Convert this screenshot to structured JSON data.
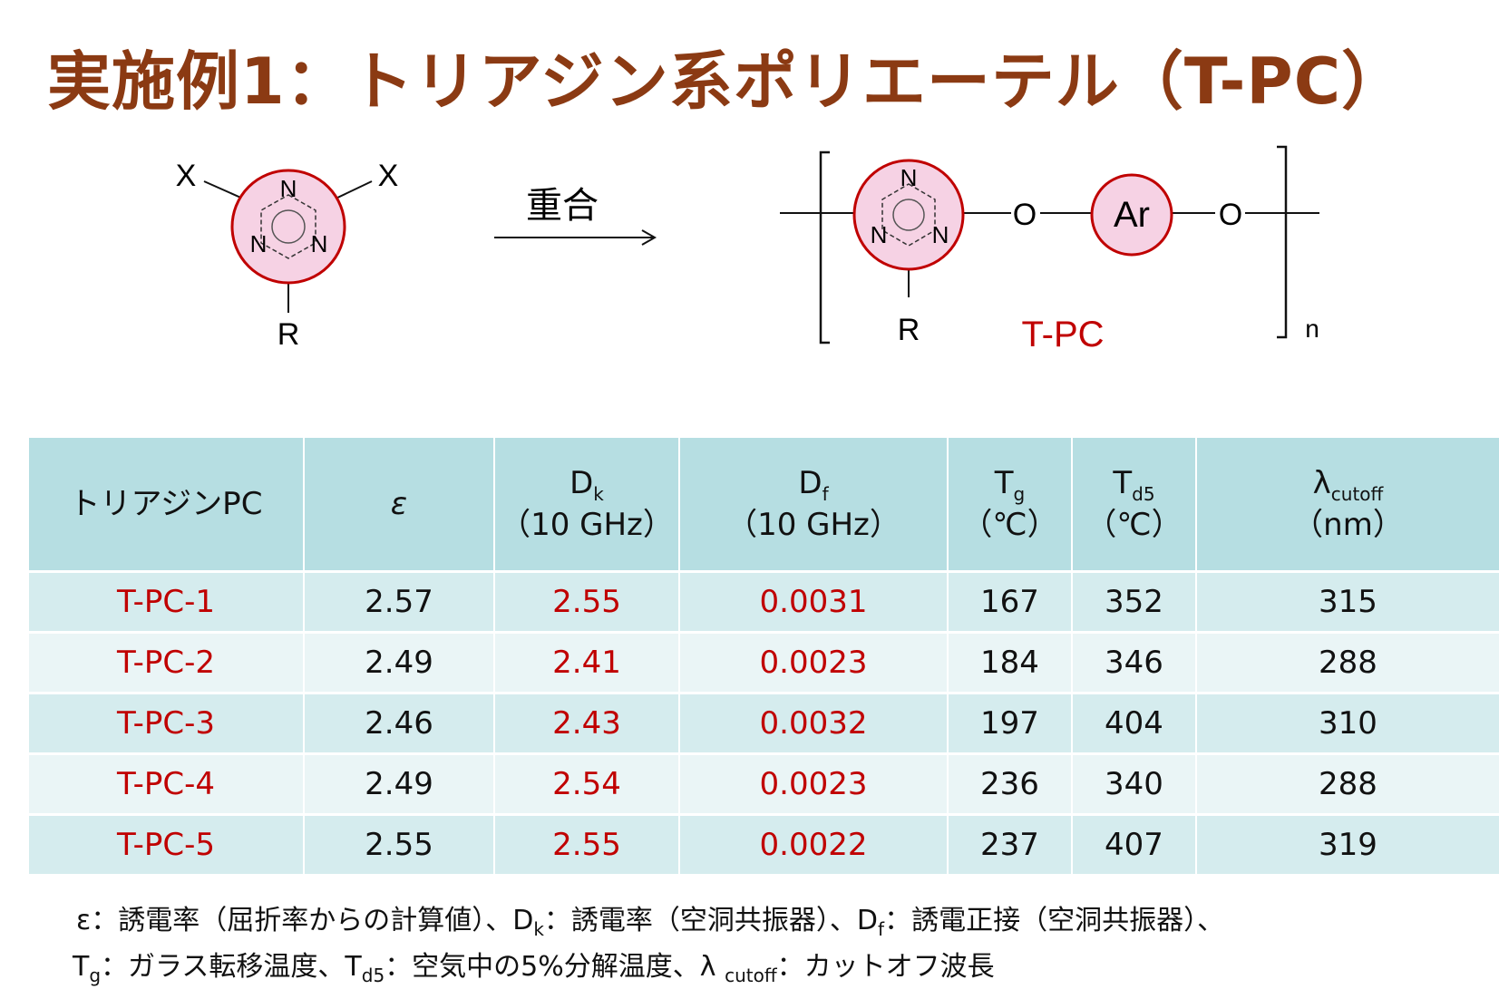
{
  "title": "実施例1：トリアジン系ポリエーテル（T-PC）",
  "scheme": {
    "monomer_sub_x_left": "X",
    "monomer_sub_x_right": "X",
    "monomer_n_top": "N",
    "monomer_n_left": "N",
    "monomer_n_right": "N",
    "monomer_r": "R",
    "reaction_label": "重合",
    "polymer_n_top": "N",
    "polymer_n_left": "N",
    "polymer_n_right": "N",
    "polymer_r": "R",
    "oxygen_1": "O",
    "aryl": "Ar",
    "oxygen_2": "O",
    "repeat_n": "n",
    "polymer_name": "T-PC",
    "colors": {
      "ring_fill": "#F6D2E4",
      "ring_stroke": "#C00000",
      "accent": "#C00000"
    }
  },
  "table": {
    "headers": {
      "c1": "トリアジンPC",
      "c2": "ε",
      "c3_main": "D",
      "c3_sub": "k",
      "c3_line2": "（10 GHz）",
      "c4_main": "D",
      "c4_sub": "f",
      "c4_line2": "（10 GHz）",
      "c5_main": "T",
      "c5_sub": "g",
      "c5_unit": "（℃）",
      "c6_main": "T",
      "c6_sub": "d5",
      "c6_line2": "（℃）",
      "c7_main": "λ",
      "c7_sub": "cutoff",
      "c7_line2": "（nm）"
    },
    "rows": [
      {
        "name": "T-PC-1",
        "eps": "2.57",
        "dk": "2.55",
        "df": "0.0031",
        "tg": "167",
        "td5": "352",
        "lam": "315"
      },
      {
        "name": "T-PC-2",
        "eps": "2.49",
        "dk": "2.41",
        "df": "0.0023",
        "tg": "184",
        "td5": "346",
        "lam": "288"
      },
      {
        "name": "T-PC-3",
        "eps": "2.46",
        "dk": "2.43",
        "df": "0.0032",
        "tg": "197",
        "td5": "404",
        "lam": "310"
      },
      {
        "name": "T-PC-4",
        "eps": "2.49",
        "dk": "2.54",
        "df": "0.0023",
        "tg": "236",
        "td5": "340",
        "lam": "288"
      },
      {
        "name": "T-PC-5",
        "eps": "2.55",
        "dk": "2.55",
        "df": "0.0022",
        "tg": "237",
        "td5": "407",
        "lam": "319"
      }
    ]
  },
  "footnote": {
    "l1_a": "ε：誘電率（屈折率からの計算値）、D",
    "l1_a_sub": "k",
    "l1_b": "：誘電率（空洞共振器）、D",
    "l1_b_sub": "f",
    "l1_c": "：誘電正接（空洞共振器）、",
    "l2_a": "T",
    "l2_a_sub": "g",
    "l2_b": "：ガラス転移温度、T",
    "l2_b_sub": "d5",
    "l2_c": "：空気中の5%分解温度、λ ",
    "l2_c_sub": "cutoff",
    "l2_d": "：カットオフ波長"
  }
}
